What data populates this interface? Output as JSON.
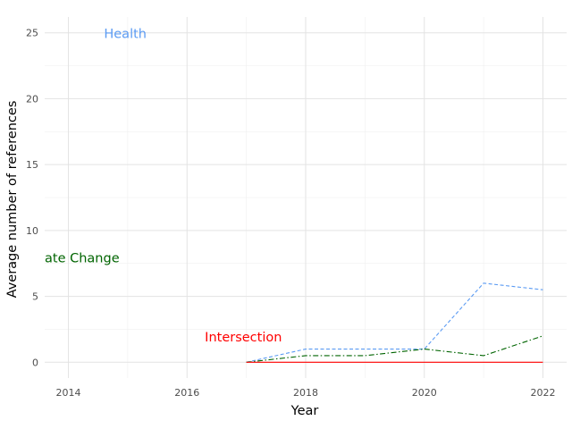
{
  "chart_data": {
    "type": "line",
    "xlabel": "Year",
    "ylabel": "Average number of references",
    "xlim": [
      2013.6,
      2022.4
    ],
    "ylim": [
      -1.2,
      26.2
    ],
    "xticks": [
      2014,
      2016,
      2018,
      2020,
      2022
    ],
    "xtick_labels": [
      "2014",
      "2016",
      "2018",
      "2020",
      "2022"
    ],
    "yticks": [
      0,
      5,
      10,
      15,
      20,
      25
    ],
    "ytick_labels": [
      "0",
      "5",
      "10",
      "15",
      "20",
      "25"
    ],
    "grid": true,
    "legend": "none",
    "series": [
      {
        "name": "Health",
        "color": "#5b9bf3",
        "dash": "dashed",
        "x": [
          2017,
          2018,
          2019,
          2020,
          2021,
          2022
        ],
        "y": [
          0,
          1,
          1,
          1,
          6,
          5.5
        ]
      },
      {
        "name": "Climate Change",
        "color": "#006400",
        "dash": "dashdot",
        "x": [
          2017,
          2018,
          2019,
          2020,
          2021,
          2022
        ],
        "y": [
          0,
          0.5,
          0.5,
          1,
          0.5,
          2
        ]
      },
      {
        "name": "Intersection",
        "color": "#ff0000",
        "dash": "solid",
        "x": [
          2017,
          2018,
          2019,
          2020,
          2021,
          2022
        ],
        "y": [
          0,
          0,
          0,
          0,
          0,
          0
        ]
      }
    ],
    "annotations": [
      {
        "text": "Health",
        "x": 2014.6,
        "y": 25,
        "color": "#5b9bf3"
      },
      {
        "text": "ate Change",
        "x": 2013.6,
        "y": 8,
        "color": "#006400"
      },
      {
        "text": "Intersection",
        "x": 2016.3,
        "y": 2,
        "color": "#ff0000"
      }
    ]
  }
}
